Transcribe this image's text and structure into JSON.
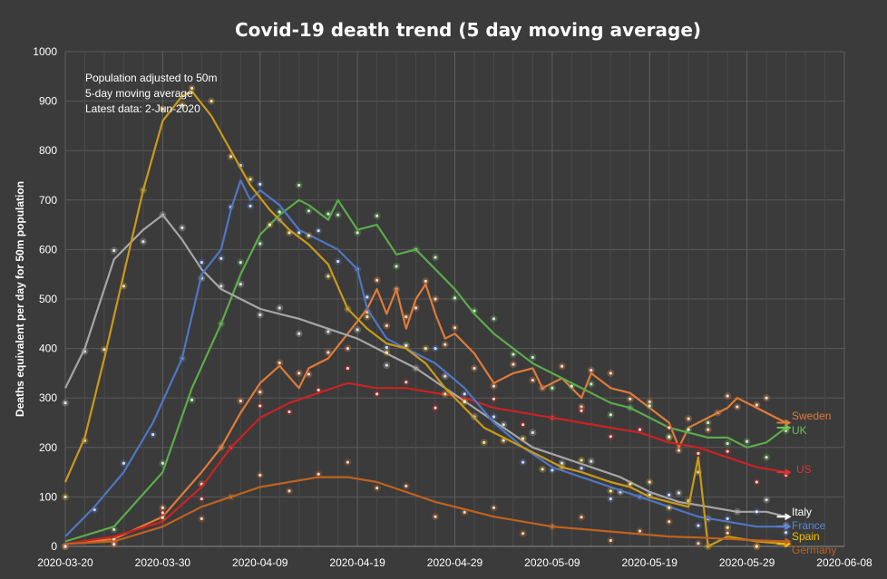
{
  "chart_data": {
    "type": "line",
    "title": "Covid-19 death trend (5 day moving average)",
    "xlabel": "",
    "ylabel": "Deaths equivalent per day for 50m population",
    "ylim": [
      0,
      1000
    ],
    "yticks": [
      0,
      100,
      200,
      300,
      400,
      500,
      600,
      700,
      800,
      900,
      1000
    ],
    "xlim": [
      "2020-03-20",
      "2020-06-08"
    ],
    "xticks": [
      "2020-03-20",
      "2020-03-30",
      "2020-04-09",
      "2020-04-19",
      "2020-04-29",
      "2020-05-09",
      "2020-05-19",
      "2020-05-29",
      "2020-06-08"
    ],
    "grid": true,
    "notes": [
      "Population adjusted to 50m",
      "5-day moving average",
      "Latest data: 2-Jun-2020"
    ],
    "series": [
      {
        "name": "Sweden",
        "color": "#e07b39",
        "end_label_color": "#e07b39",
        "points": [
          [
            "2020-03-20",
            5
          ],
          [
            "2020-03-25",
            15
          ],
          [
            "2020-03-30",
            60
          ],
          [
            "2020-04-03",
            150
          ],
          [
            "2020-04-05",
            200
          ],
          [
            "2020-04-07",
            270
          ],
          [
            "2020-04-09",
            330
          ],
          [
            "2020-04-11",
            365
          ],
          [
            "2020-04-13",
            320
          ],
          [
            "2020-04-14",
            360
          ],
          [
            "2020-04-16",
            380
          ],
          [
            "2020-04-18",
            430
          ],
          [
            "2020-04-20",
            480
          ],
          [
            "2020-04-21",
            520
          ],
          [
            "2020-04-22",
            470
          ],
          [
            "2020-04-23",
            520
          ],
          [
            "2020-04-24",
            440
          ],
          [
            "2020-04-25",
            500
          ],
          [
            "2020-04-26",
            530
          ],
          [
            "2020-04-27",
            470
          ],
          [
            "2020-04-28",
            420
          ],
          [
            "2020-04-29",
            430
          ],
          [
            "2020-05-01",
            390
          ],
          [
            "2020-05-03",
            330
          ],
          [
            "2020-05-05",
            350
          ],
          [
            "2020-05-07",
            360
          ],
          [
            "2020-05-08",
            320
          ],
          [
            "2020-05-10",
            340
          ],
          [
            "2020-05-12",
            300
          ],
          [
            "2020-05-13",
            350
          ],
          [
            "2020-05-15",
            320
          ],
          [
            "2020-05-17",
            310
          ],
          [
            "2020-05-19",
            280
          ],
          [
            "2020-05-21",
            250
          ],
          [
            "2020-05-22",
            200
          ],
          [
            "2020-05-23",
            240
          ],
          [
            "2020-05-25",
            260
          ],
          [
            "2020-05-26",
            270
          ],
          [
            "2020-05-27",
            280
          ],
          [
            "2020-05-28",
            300
          ],
          [
            "2020-05-30",
            280
          ],
          [
            "2020-05-31",
            270
          ],
          [
            "2020-06-02",
            250
          ]
        ]
      },
      {
        "name": "UK",
        "color": "#5cab4a",
        "end_label_color": "#6ec05a",
        "points": [
          [
            "2020-03-20",
            10
          ],
          [
            "2020-03-25",
            40
          ],
          [
            "2020-03-30",
            150
          ],
          [
            "2020-04-02",
            320
          ],
          [
            "2020-04-05",
            450
          ],
          [
            "2020-04-07",
            550
          ],
          [
            "2020-04-09",
            630
          ],
          [
            "2020-04-11",
            670
          ],
          [
            "2020-04-13",
            700
          ],
          [
            "2020-04-14",
            690
          ],
          [
            "2020-04-16",
            660
          ],
          [
            "2020-04-17",
            700
          ],
          [
            "2020-04-19",
            640
          ],
          [
            "2020-04-21",
            650
          ],
          [
            "2020-04-23",
            590
          ],
          [
            "2020-04-25",
            600
          ],
          [
            "2020-04-27",
            560
          ],
          [
            "2020-04-29",
            520
          ],
          [
            "2020-05-01",
            470
          ],
          [
            "2020-05-03",
            430
          ],
          [
            "2020-05-05",
            400
          ],
          [
            "2020-05-07",
            370
          ],
          [
            "2020-05-09",
            350
          ],
          [
            "2020-05-11",
            330
          ],
          [
            "2020-05-13",
            310
          ],
          [
            "2020-05-15",
            290
          ],
          [
            "2020-05-17",
            280
          ],
          [
            "2020-05-19",
            260
          ],
          [
            "2020-05-21",
            240
          ],
          [
            "2020-05-23",
            230
          ],
          [
            "2020-05-25",
            220
          ],
          [
            "2020-05-27",
            220
          ],
          [
            "2020-05-29",
            200
          ],
          [
            "2020-05-31",
            210
          ],
          [
            "2020-06-02",
            240
          ]
        ]
      },
      {
        "name": "US",
        "color": "#cc2222",
        "end_label_color": "#dd3333",
        "points": [
          [
            "2020-03-20",
            5
          ],
          [
            "2020-03-25",
            20
          ],
          [
            "2020-03-30",
            50
          ],
          [
            "2020-04-03",
            120
          ],
          [
            "2020-04-06",
            200
          ],
          [
            "2020-04-09",
            260
          ],
          [
            "2020-04-12",
            290
          ],
          [
            "2020-04-15",
            310
          ],
          [
            "2020-04-18",
            330
          ],
          [
            "2020-04-21",
            320
          ],
          [
            "2020-04-24",
            320
          ],
          [
            "2020-04-27",
            310
          ],
          [
            "2020-04-30",
            300
          ],
          [
            "2020-05-03",
            280
          ],
          [
            "2020-05-06",
            270
          ],
          [
            "2020-05-09",
            260
          ],
          [
            "2020-05-12",
            250
          ],
          [
            "2020-05-15",
            240
          ],
          [
            "2020-05-18",
            230
          ],
          [
            "2020-05-21",
            210
          ],
          [
            "2020-05-24",
            200
          ],
          [
            "2020-05-27",
            180
          ],
          [
            "2020-05-30",
            160
          ],
          [
            "2020-06-02",
            150
          ]
        ]
      },
      {
        "name": "Italy",
        "color": "#a6a6a6",
        "end_label_color": "#ffffff",
        "points": [
          [
            "2020-03-20",
            320
          ],
          [
            "2020-03-22",
            400
          ],
          [
            "2020-03-25",
            580
          ],
          [
            "2020-03-28",
            640
          ],
          [
            "2020-03-30",
            670
          ],
          [
            "2020-04-01",
            620
          ],
          [
            "2020-04-03",
            560
          ],
          [
            "2020-04-05",
            520
          ],
          [
            "2020-04-07",
            500
          ],
          [
            "2020-04-09",
            480
          ],
          [
            "2020-04-11",
            470
          ],
          [
            "2020-04-13",
            460
          ],
          [
            "2020-04-16",
            440
          ],
          [
            "2020-04-19",
            420
          ],
          [
            "2020-04-22",
            390
          ],
          [
            "2020-04-25",
            360
          ],
          [
            "2020-04-28",
            320
          ],
          [
            "2020-05-01",
            280
          ],
          [
            "2020-05-04",
            240
          ],
          [
            "2020-05-07",
            200
          ],
          [
            "2020-05-10",
            180
          ],
          [
            "2020-05-13",
            160
          ],
          [
            "2020-05-16",
            140
          ],
          [
            "2020-05-19",
            110
          ],
          [
            "2020-05-22",
            90
          ],
          [
            "2020-05-25",
            80
          ],
          [
            "2020-05-28",
            70
          ],
          [
            "2020-05-31",
            70
          ],
          [
            "2020-06-02",
            60
          ]
        ]
      },
      {
        "name": "France",
        "color": "#4f76c4",
        "end_label_color": "#5b86d6",
        "points": [
          [
            "2020-03-20",
            20
          ],
          [
            "2020-03-23",
            80
          ],
          [
            "2020-03-26",
            150
          ],
          [
            "2020-03-29",
            250
          ],
          [
            "2020-04-01",
            380
          ],
          [
            "2020-04-03",
            550
          ],
          [
            "2020-04-05",
            600
          ],
          [
            "2020-04-06",
            680
          ],
          [
            "2020-04-07",
            740
          ],
          [
            "2020-04-08",
            700
          ],
          [
            "2020-04-09",
            720
          ],
          [
            "2020-04-11",
            690
          ],
          [
            "2020-04-13",
            640
          ],
          [
            "2020-04-15",
            620
          ],
          [
            "2020-04-17",
            600
          ],
          [
            "2020-04-19",
            560
          ],
          [
            "2020-04-20",
            480
          ],
          [
            "2020-04-22",
            420
          ],
          [
            "2020-04-24",
            400
          ],
          [
            "2020-04-27",
            370
          ],
          [
            "2020-04-30",
            320
          ],
          [
            "2020-05-03",
            250
          ],
          [
            "2020-05-06",
            200
          ],
          [
            "2020-05-09",
            160
          ],
          [
            "2020-05-12",
            140
          ],
          [
            "2020-05-15",
            120
          ],
          [
            "2020-05-18",
            100
          ],
          [
            "2020-05-21",
            80
          ],
          [
            "2020-05-24",
            60
          ],
          [
            "2020-05-27",
            50
          ],
          [
            "2020-05-30",
            40
          ],
          [
            "2020-06-02",
            40
          ]
        ]
      },
      {
        "name": "Spain",
        "color": "#c99a1a",
        "end_label_color": "#f0c000",
        "points": [
          [
            "2020-03-20",
            130
          ],
          [
            "2020-03-22",
            220
          ],
          [
            "2020-03-24",
            380
          ],
          [
            "2020-03-26",
            550
          ],
          [
            "2020-03-28",
            720
          ],
          [
            "2020-03-30",
            860
          ],
          [
            "2020-04-01",
            910
          ],
          [
            "2020-04-02",
            920
          ],
          [
            "2020-04-04",
            870
          ],
          [
            "2020-04-06",
            800
          ],
          [
            "2020-04-08",
            730
          ],
          [
            "2020-04-10",
            680
          ],
          [
            "2020-04-12",
            640
          ],
          [
            "2020-04-14",
            610
          ],
          [
            "2020-04-16",
            570
          ],
          [
            "2020-04-18",
            480
          ],
          [
            "2020-04-20",
            440
          ],
          [
            "2020-04-22",
            410
          ],
          [
            "2020-04-24",
            400
          ],
          [
            "2020-04-26",
            370
          ],
          [
            "2020-04-28",
            320
          ],
          [
            "2020-04-30",
            280
          ],
          [
            "2020-05-02",
            240
          ],
          [
            "2020-05-04",
            220
          ],
          [
            "2020-05-06",
            200
          ],
          [
            "2020-05-08",
            180
          ],
          [
            "2020-05-10",
            160
          ],
          [
            "2020-05-12",
            150
          ],
          [
            "2020-05-15",
            130
          ],
          [
            "2020-05-17",
            120
          ],
          [
            "2020-05-19",
            100
          ],
          [
            "2020-05-21",
            90
          ],
          [
            "2020-05-23",
            80
          ],
          [
            "2020-05-24",
            180
          ],
          [
            "2020-05-25",
            0
          ],
          [
            "2020-05-27",
            20
          ],
          [
            "2020-05-30",
            10
          ],
          [
            "2020-06-02",
            5
          ]
        ]
      },
      {
        "name": "Germany",
        "color": "#c0621f",
        "end_label_color": "#c0621f",
        "points": [
          [
            "2020-03-20",
            5
          ],
          [
            "2020-03-25",
            10
          ],
          [
            "2020-03-30",
            40
          ],
          [
            "2020-04-03",
            80
          ],
          [
            "2020-04-06",
            100
          ],
          [
            "2020-04-09",
            120
          ],
          [
            "2020-04-12",
            130
          ],
          [
            "2020-04-15",
            140
          ],
          [
            "2020-04-18",
            140
          ],
          [
            "2020-04-21",
            130
          ],
          [
            "2020-04-24",
            110
          ],
          [
            "2020-04-27",
            90
          ],
          [
            "2020-04-30",
            75
          ],
          [
            "2020-05-03",
            60
          ],
          [
            "2020-05-06",
            50
          ],
          [
            "2020-05-09",
            40
          ],
          [
            "2020-05-12",
            35
          ],
          [
            "2020-05-15",
            30
          ],
          [
            "2020-05-18",
            25
          ],
          [
            "2020-05-21",
            20
          ],
          [
            "2020-05-24",
            18
          ],
          [
            "2020-05-27",
            15
          ],
          [
            "2020-05-30",
            12
          ],
          [
            "2020-06-02",
            10
          ]
        ]
      }
    ]
  }
}
